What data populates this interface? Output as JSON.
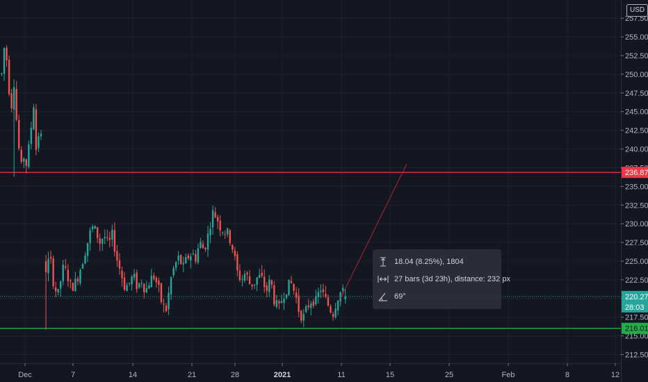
{
  "currency": "USD",
  "colors": {
    "background": "#131722",
    "grid": "#1e222d",
    "up": "#26a69a",
    "down": "#ef5350",
    "resistance": "#f23645",
    "support": "#22ab48",
    "current": "#26a69a",
    "text": "#b2b5be"
  },
  "chart_data": {
    "type": "candlestick",
    "y_ticks": [
      "212.50",
      "215.00",
      "217.50",
      "220.00",
      "222.50",
      "225.00",
      "227.50",
      "230.00",
      "232.50",
      "235.00",
      "237.50",
      "240.00",
      "242.50",
      "245.00",
      "247.50",
      "250.00",
      "252.50",
      "255.00",
      "257.50"
    ],
    "ylim": [
      211.8,
      257.8
    ],
    "x_ticks": [
      {
        "label": "Dec",
        "bold": false
      },
      {
        "label": "7",
        "bold": false
      },
      {
        "label": "14",
        "bold": false
      },
      {
        "label": "21",
        "bold": false
      },
      {
        "label": "28",
        "bold": false
      },
      {
        "label": "2021",
        "bold": true
      },
      {
        "label": "11",
        "bold": false
      },
      {
        "label": "15",
        "bold": false
      },
      {
        "label": "25",
        "bold": false
      },
      {
        "label": "Feb",
        "bold": false
      },
      {
        "label": "8",
        "bold": false
      },
      {
        "label": "12",
        "bold": false
      }
    ],
    "horizontal_lines": [
      {
        "name": "resistance",
        "value": 236.87,
        "label": "236.87",
        "color": "#f23645"
      },
      {
        "name": "support",
        "value": 216.01,
        "label": "216.01",
        "color": "#22ab48"
      }
    ],
    "current_price": {
      "value": 220.27,
      "label": "220.27",
      "countdown": "28:03"
    },
    "trend_line": {
      "from": {
        "bar": 138,
        "price": 220.0
      },
      "to": {
        "bar": 165,
        "price": 238.0
      }
    },
    "candles": [
      {
        "segment": 1,
        "from": 0,
        "to": 16,
        "path": [
          250.0,
          253.5,
          252.0,
          248.0,
          246.0,
          249.0,
          244.0,
          240.0,
          237.5,
          239.0,
          238.0,
          240.0,
          243.0,
          246.0,
          240.0,
          242.0,
          241.5
        ]
      },
      {
        "segment": 2,
        "from": 18,
        "to": 140,
        "path": [
          224.0,
          225.5,
          221.5,
          220.5,
          224.0,
          223.5,
          221.5,
          222.0,
          223.5,
          225.5,
          227.5,
          229.5,
          229.0,
          227.5,
          228.5,
          227.0,
          228.5,
          225.5,
          223.5,
          221.5,
          222.0,
          223.0,
          221.5,
          222.5,
          221.0,
          222.5,
          223.0,
          221.5,
          219.0,
          218.5,
          222.5,
          224.5,
          225.5,
          224.0,
          225.5,
          226.0,
          225.5,
          227.5,
          226.5,
          228.5,
          231.5,
          231.0,
          229.5,
          229.0,
          228.5,
          226.5,
          223.5,
          222.5,
          223.5,
          222.0,
          222.0,
          223.0,
          222.5,
          221.0,
          222.5,
          219.5,
          218.5,
          220.5,
          221.5,
          222.0,
          220.5,
          218.0,
          217.5,
          219.0,
          220.0,
          219.5,
          221.5,
          220.0,
          219.0,
          218.0,
          220.0,
          221.0,
          220.27
        ]
      }
    ]
  },
  "tooltip": {
    "price_range": "18.04 (8.25%), 1804",
    "bars_range": "27 bars (3d 23h), distance: 232 px",
    "angle": "69°"
  }
}
